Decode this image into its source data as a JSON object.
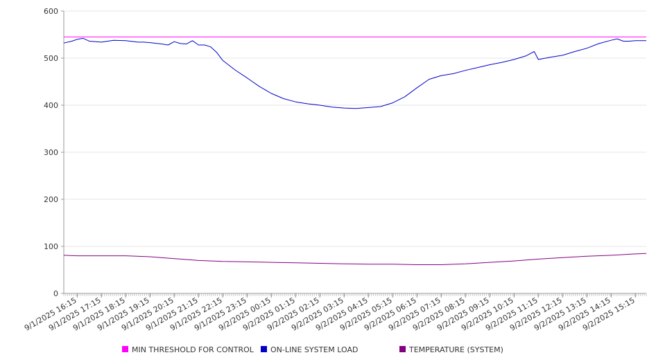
{
  "chart_data": {
    "type": "line",
    "ylim": [
      0,
      600
    ],
    "yticks": [
      0,
      100,
      200,
      300,
      400,
      500,
      600
    ],
    "xlim": [
      "9/1/2025 15:42",
      "9/2/2025 15:42"
    ],
    "xtick_labels": [
      "9/1/2025 16:15",
      "9/1/2025 17:15",
      "9/1/2025 18:15",
      "9/1/2025 19:15",
      "9/1/2025 20:15",
      "9/1/2025 21:15",
      "9/1/2025 22:15",
      "9/1/2025 23:15",
      "9/2/2025 00:15",
      "9/2/2025 01:15",
      "9/2/2025 02:15",
      "9/2/2025 03:15",
      "9/2/2025 04:15",
      "9/2/2025 05:15",
      "9/2/2025 06:15",
      "9/2/2025 07:15",
      "9/2/2025 08:15",
      "9/2/2025 09:15",
      "9/2/2025 10:15",
      "9/2/2025 11:15",
      "9/2/2025 12:15",
      "9/2/2025 13:15",
      "9/2/2025 14:15",
      "9/2/2025 15:15"
    ],
    "grid": true,
    "legend_position": "bottom",
    "series": [
      {
        "name": "MIN THRESHOLD FOR CONTROL",
        "color": "#ff00ff",
        "x": [
          "9/1/2025 15:42",
          "9/2/2025 15:42"
        ],
        "y": [
          545,
          545
        ]
      },
      {
        "name": "ON-LINE SYSTEM LOAD",
        "color": "#0000cc",
        "x": [
          "9/1/2025 15:42",
          "9/1/2025 16:02",
          "9/1/2025 16:15",
          "9/1/2025 16:30",
          "9/1/2025 16:45",
          "9/1/2025 17:15",
          "9/1/2025 17:45",
          "9/1/2025 18:15",
          "9/1/2025 18:45",
          "9/1/2025 19:00",
          "9/1/2025 19:15",
          "9/1/2025 19:45",
          "9/1/2025 20:00",
          "9/1/2025 20:15",
          "9/1/2025 20:30",
          "9/1/2025 20:45",
          "9/1/2025 21:00",
          "9/1/2025 21:15",
          "9/1/2025 21:30",
          "9/1/2025 21:45",
          "9/1/2025 22:00",
          "9/1/2025 22:15",
          "9/1/2025 22:45",
          "9/1/2025 23:15",
          "9/1/2025 23:45",
          "9/2/2025 00:15",
          "9/2/2025 00:45",
          "9/2/2025 01:15",
          "9/2/2025 01:45",
          "9/2/2025 02:15",
          "9/2/2025 02:45",
          "9/2/2025 03:15",
          "9/2/2025 03:45",
          "9/2/2025 04:15",
          "9/2/2025 04:45",
          "9/2/2025 05:15",
          "9/2/2025 05:45",
          "9/2/2025 06:15",
          "9/2/2025 06:45",
          "9/2/2025 07:15",
          "9/2/2025 07:45",
          "9/2/2025 08:15",
          "9/2/2025 08:45",
          "9/2/2025 09:15",
          "9/2/2025 09:45",
          "9/2/2025 10:15",
          "9/2/2025 10:45",
          "9/2/2025 11:05",
          "9/2/2025 11:15",
          "9/2/2025 11:45",
          "9/2/2025 12:15",
          "9/2/2025 12:45",
          "9/2/2025 13:15",
          "9/2/2025 13:45",
          "9/2/2025 14:15",
          "9/2/2025 14:30",
          "9/2/2025 14:45",
          "9/2/2025 15:00",
          "9/2/2025 15:15",
          "9/2/2025 15:42"
        ],
        "y": [
          532,
          536,
          540,
          542,
          536,
          534,
          538,
          537,
          534,
          534,
          533,
          530,
          528,
          535,
          531,
          530,
          537,
          528,
          528,
          524,
          512,
          495,
          475,
          458,
          440,
          425,
          414,
          407,
          403,
          400,
          396,
          394,
          393,
          395,
          397,
          405,
          418,
          437,
          455,
          463,
          467,
          474,
          480,
          486,
          491,
          497,
          505,
          514,
          497,
          502,
          506,
          514,
          521,
          531,
          538,
          541,
          536,
          536,
          537,
          537
        ]
      },
      {
        "name": "TEMPERATURE (SYSTEM)",
        "color": "#800080",
        "x": [
          "9/1/2025 15:42",
          "9/1/2025 16:15",
          "9/1/2025 17:15",
          "9/1/2025 18:15",
          "9/1/2025 19:15",
          "9/1/2025 20:15",
          "9/1/2025 21:15",
          "9/1/2025 22:15",
          "9/1/2025 23:15",
          "9/2/2025 00:15",
          "9/2/2025 01:15",
          "9/2/2025 02:15",
          "9/2/2025 03:15",
          "9/2/2025 04:15",
          "9/2/2025 05:15",
          "9/2/2025 06:15",
          "9/2/2025 07:15",
          "9/2/2025 08:15",
          "9/2/2025 09:15",
          "9/2/2025 10:15",
          "9/2/2025 11:15",
          "9/2/2025 12:15",
          "9/2/2025 13:15",
          "9/2/2025 14:15",
          "9/2/2025 15:15",
          "9/2/2025 15:42"
        ],
        "y": [
          81,
          80,
          80,
          80,
          78,
          74,
          70,
          68,
          67,
          66,
          65,
          64,
          63,
          62,
          62,
          61,
          61,
          63,
          66,
          69,
          73,
          76,
          79,
          81,
          84,
          85
        ]
      }
    ]
  }
}
